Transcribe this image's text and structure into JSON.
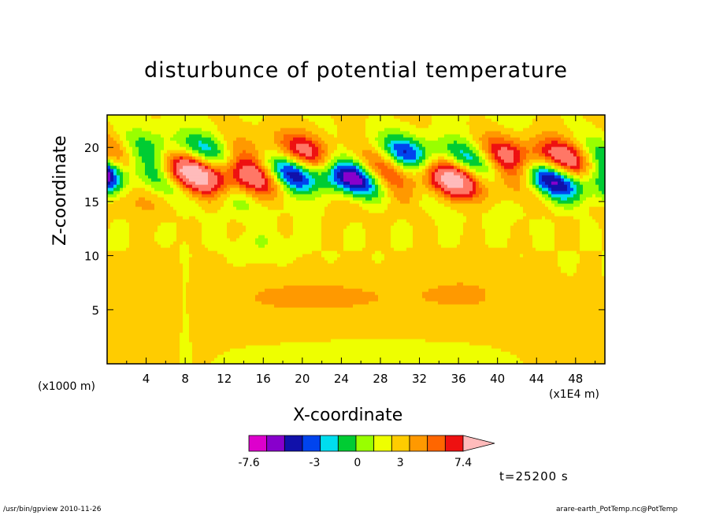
{
  "chart_data": {
    "type": "heatmap",
    "title": "disturbunce of potential temperature",
    "xlabel": "X-coordinate",
    "ylabel": "Z-coordinate",
    "x_unit_left": "(x1000 m)",
    "x_unit_right": "(x1E4 m)",
    "xlim": [
      0,
      51
    ],
    "ylim": [
      0,
      23
    ],
    "xticks": [
      "4",
      "8",
      "12",
      "16",
      "20",
      "24",
      "28",
      "32",
      "36",
      "40",
      "44",
      "48"
    ],
    "yticks": [
      "5",
      "10",
      "15",
      "20"
    ],
    "colorbar": {
      "levels": [
        -7.6,
        -6.4,
        -5.2,
        -4.1,
        -3,
        -1.8,
        -0.6,
        0.6,
        1.8,
        3,
        4.1,
        5.2,
        7.4
      ],
      "tick_labels": [
        "-7.6",
        "-3",
        "0",
        "3",
        "7.4"
      ],
      "colors": [
        "#dd00cc",
        "#8800cc",
        "#1111aa",
        "#0044ee",
        "#00ddee",
        "#00cc33",
        "#99ff00",
        "#eeff00",
        "#ffcc00",
        "#ff9900",
        "#ff6600",
        "#ee1111",
        "#ff7766",
        "#ffbbbb"
      ]
    },
    "annotation": "t=25200 s"
  },
  "footer": {
    "left": "/usr/bin/gpview  2010-11-26",
    "right": "arare-earth_PotTemp.nc@PotTemp"
  }
}
